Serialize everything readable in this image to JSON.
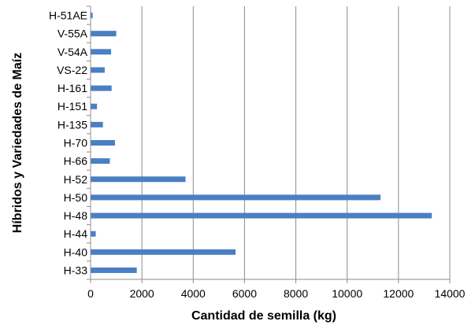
{
  "chart_data": {
    "type": "bar",
    "orientation": "horizontal",
    "title": "",
    "xlabel": "Cantidad de semilla (kg)",
    "ylabel": "Híbridos y  Variedades de Maíz",
    "categories": [
      "H-51AE",
      "V-55A",
      "V-54A",
      "VS-22",
      "H-161",
      "H-151",
      "H-135",
      "H-70",
      "H-66",
      "H-52",
      "H-50",
      "H-48",
      "H-44",
      "H-40",
      "H-33"
    ],
    "values": [
      80,
      1000,
      800,
      550,
      820,
      250,
      480,
      950,
      750,
      3700,
      11300,
      13300,
      200,
      5650,
      1800
    ],
    "xlim": [
      0,
      14000
    ],
    "xticks": [
      "0",
      "2000",
      "4000",
      "6000",
      "8000",
      "10000",
      "12000",
      "14000"
    ],
    "xtick_values": [
      0,
      2000,
      4000,
      6000,
      8000,
      10000,
      12000,
      14000
    ],
    "grid": "vertical",
    "legend": "none",
    "bar_color": "#4a7fc4",
    "grid_color": "#8c8c8c"
  }
}
